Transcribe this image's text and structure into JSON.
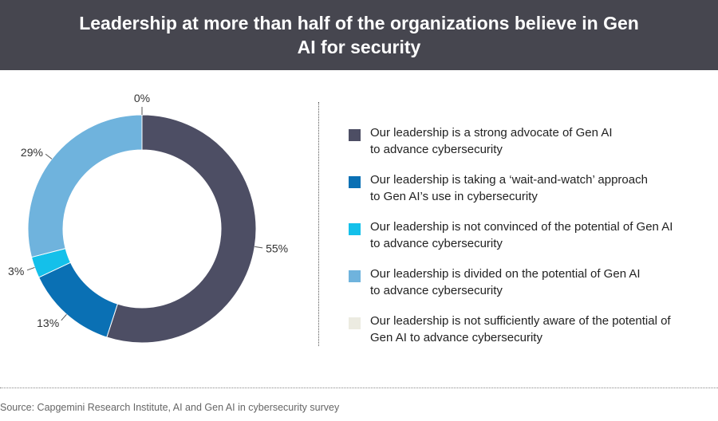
{
  "title": "Leadership at more than half of the organizations believe in Gen AI for security",
  "chart_data": {
    "type": "pie",
    "donut": true,
    "title": "Leadership at more than half of the organizations believe in Gen AI for security",
    "categories": [
      "Our leadership is a strong advocate of Gen AI to advance cybersecurity",
      "Our leadership is taking a ‘wait-and-watch’ approach to Gen AI’s use in cybersecurity",
      "Our leadership is not convinced of the potential of Gen AI to advance cybersecurity",
      "Our leadership is divided on the potential of Gen AI to advance cybersecurity",
      "Our leadership is not sufficiently aware of the potential of Gen AI to advance cybersecurity"
    ],
    "values": [
      55,
      13,
      3,
      29,
      0
    ],
    "value_labels": [
      "55%",
      "13%",
      "3%",
      "29%",
      "0%"
    ],
    "colors": [
      "#4d4e64",
      "#0a70b4",
      "#14c0ea",
      "#6fb3dd",
      "#ecebe1"
    ],
    "legend_position": "right"
  },
  "legend": {
    "items": [
      {
        "lines": [
          "Our leadership is a strong advocate of Gen AI",
          "to advance cybersecurity"
        ]
      },
      {
        "lines": [
          "Our leadership is taking a ‘wait-and-watch’ approach",
          "to Gen AI’s use in cybersecurity"
        ]
      },
      {
        "lines": [
          "Our leadership is not convinced of the potential of Gen AI",
          "to advance cybersecurity"
        ]
      },
      {
        "lines": [
          "Our leadership is divided on the potential of Gen AI",
          "to advance cybersecurity"
        ]
      },
      {
        "lines": [
          "Our leadership is not sufficiently aware of the potential of",
          "Gen AI to advance cybersecurity"
        ]
      }
    ]
  },
  "source": "Source: Capgemini Research Institute, AI and Gen AI in cybersecurity survey"
}
